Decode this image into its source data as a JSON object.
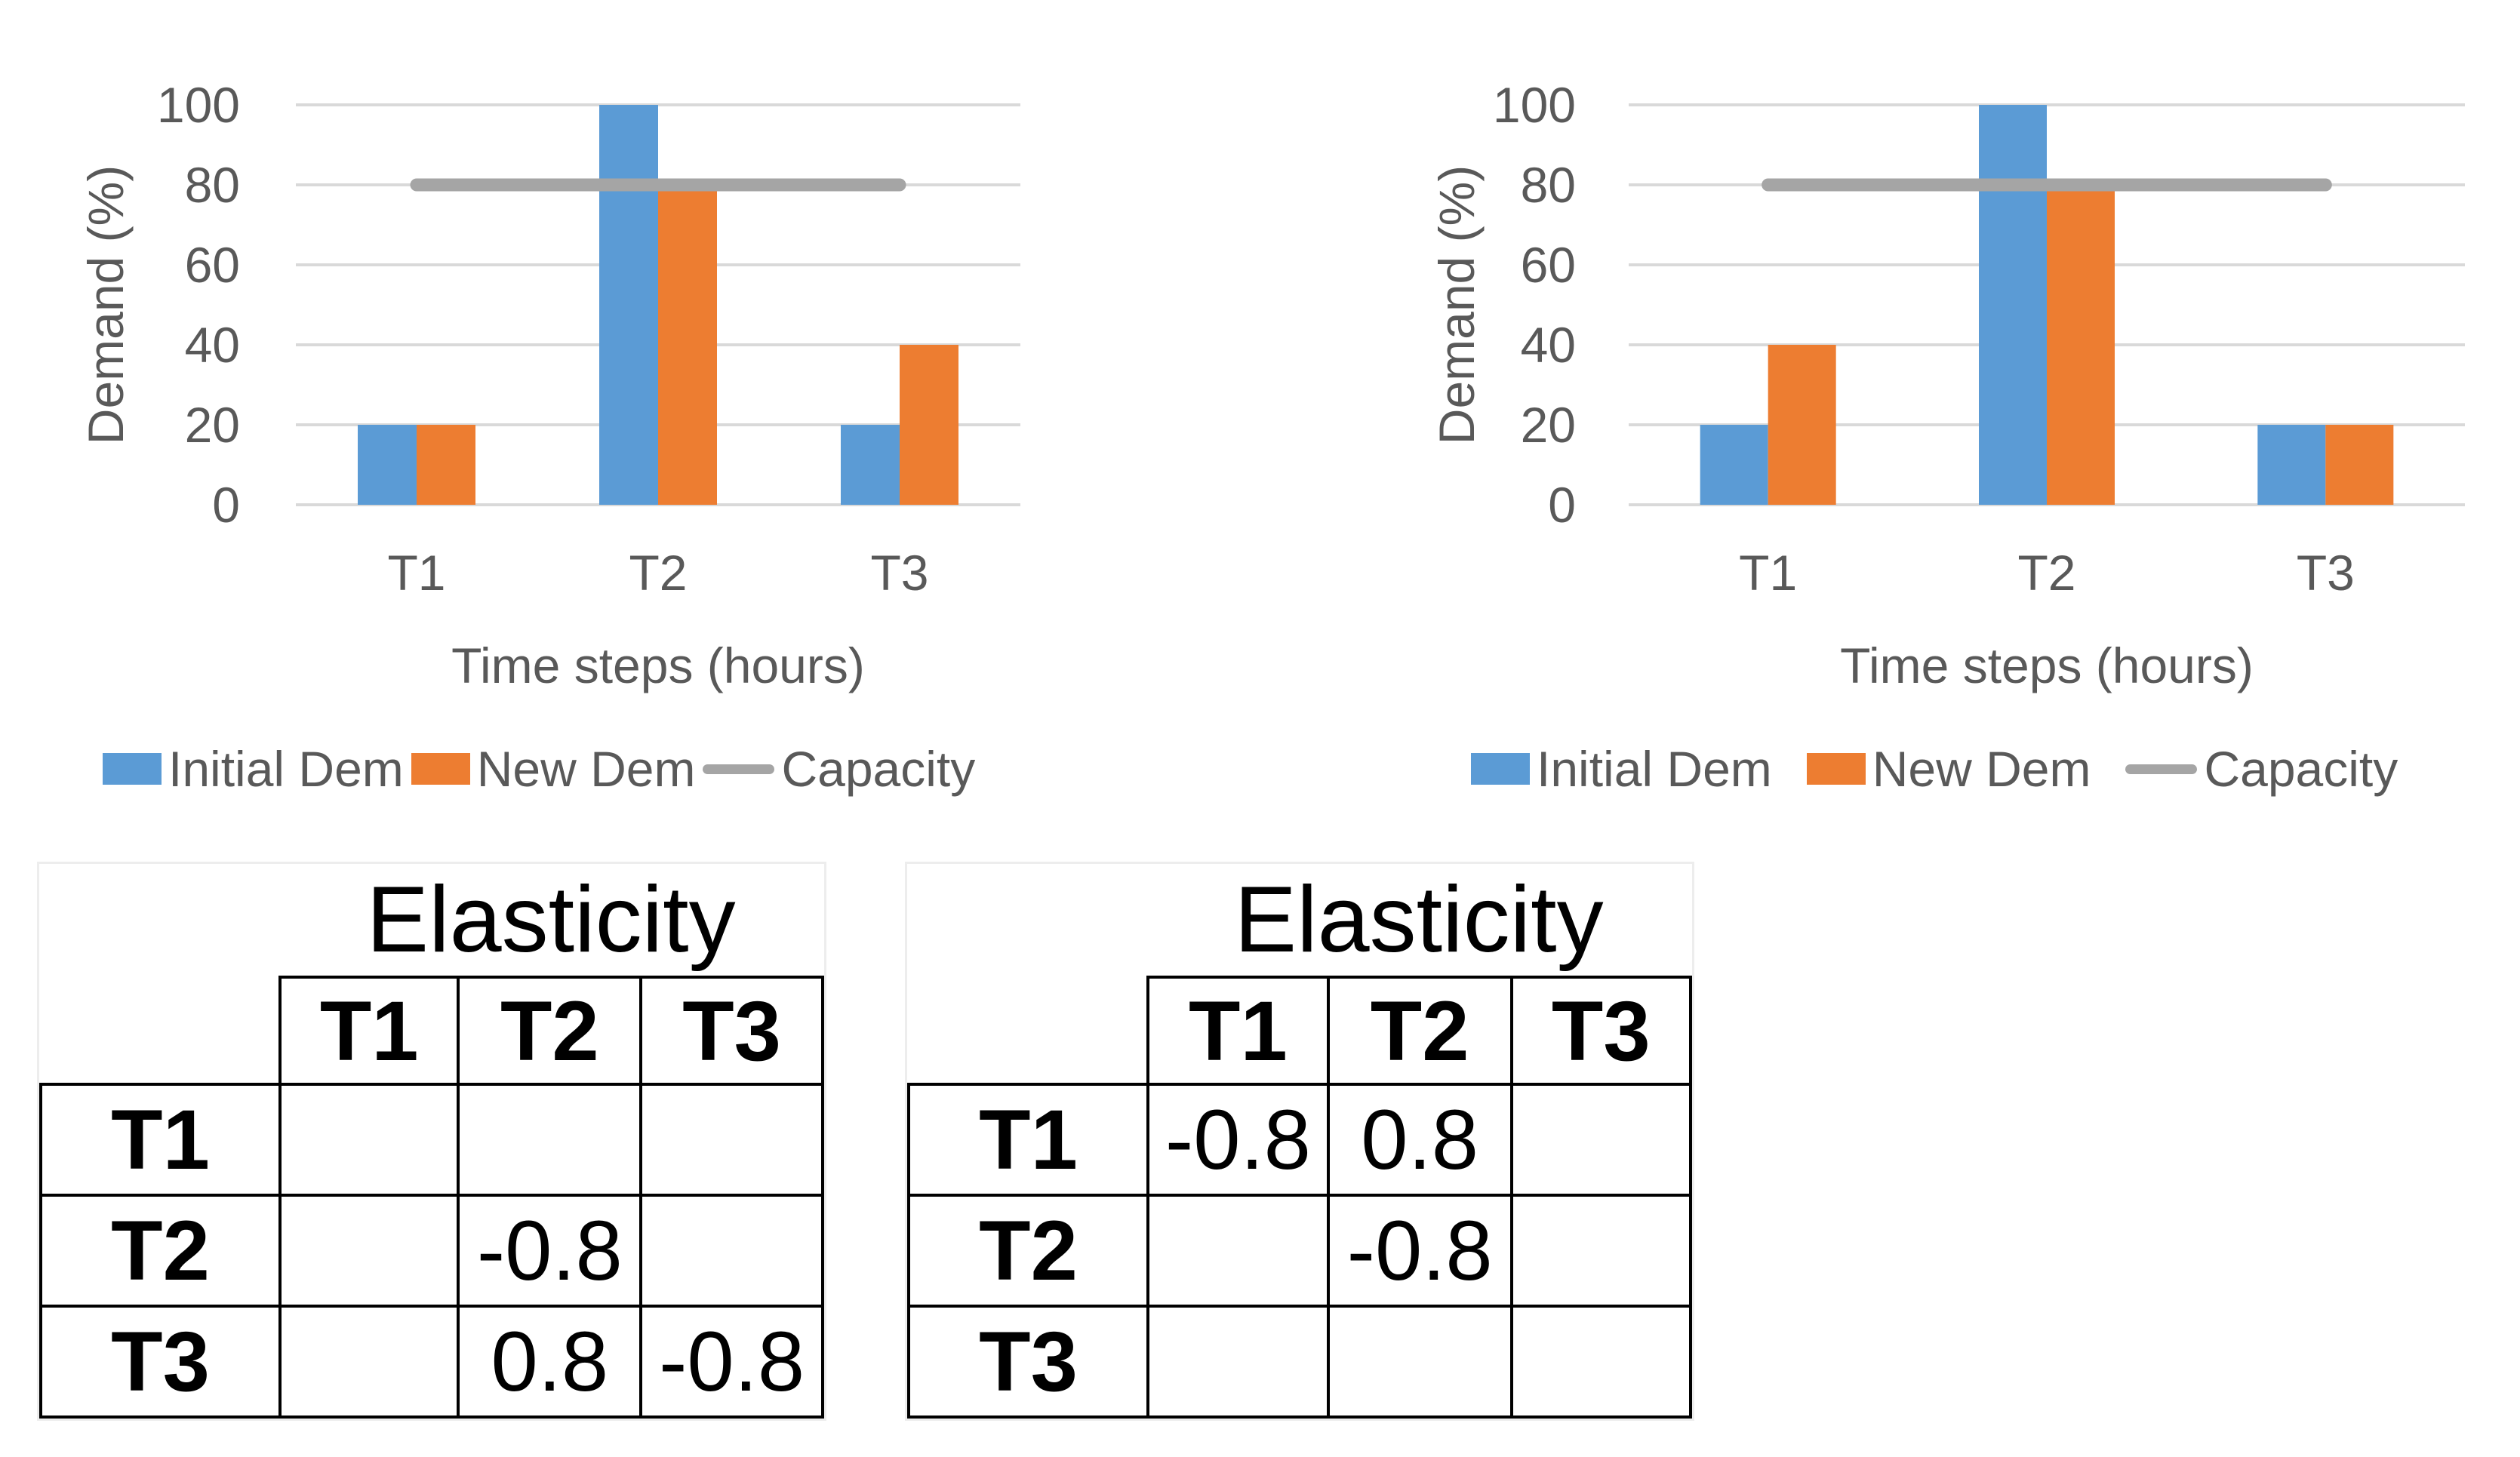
{
  "colors": {
    "initial_dem": "#5B9BD5",
    "new_dem": "#ED7D31",
    "capacity": "#A5A5A5",
    "gridline": "#D9D9D9",
    "axis_text": "#595959",
    "table_border": "#000000",
    "table_outer_border": "#EDEDED",
    "background": "#FFFFFF"
  },
  "chart_data": [
    {
      "type": "bar",
      "id": "demand-chart-left",
      "title": "",
      "xlabel": "Time steps (hours)",
      "ylabel": "Demand (%)",
      "categories": [
        "T1",
        "T2",
        "T3"
      ],
      "ylim": [
        0,
        100
      ],
      "y_ticks": [
        0,
        20,
        40,
        60,
        80,
        100
      ],
      "grid": true,
      "legend_position": "bottom",
      "series": [
        {
          "name": "Initial Dem",
          "type": "bar",
          "color": "#5B9BD5",
          "values": [
            20,
            100,
            20
          ]
        },
        {
          "name": "New Dem",
          "type": "bar",
          "color": "#ED7D31",
          "values": [
            20,
            80,
            40
          ]
        },
        {
          "name": "Capacity",
          "type": "line",
          "color": "#A5A5A5",
          "values": [
            80,
            80,
            80
          ]
        }
      ]
    },
    {
      "type": "bar",
      "id": "demand-chart-right",
      "title": "",
      "xlabel": "Time steps (hours)",
      "ylabel": "Demand (%)",
      "categories": [
        "T1",
        "T2",
        "T3"
      ],
      "ylim": [
        0,
        100
      ],
      "y_ticks": [
        0,
        20,
        40,
        60,
        80,
        100
      ],
      "grid": true,
      "legend_position": "bottom",
      "series": [
        {
          "name": "Initial Dem",
          "type": "bar",
          "color": "#5B9BD5",
          "values": [
            20,
            100,
            20
          ]
        },
        {
          "name": "New Dem",
          "type": "bar",
          "color": "#ED7D31",
          "values": [
            40,
            80,
            20
          ]
        },
        {
          "name": "Capacity",
          "type": "line",
          "color": "#A5A5A5",
          "values": [
            80,
            80,
            80
          ]
        }
      ]
    },
    {
      "type": "table",
      "id": "elasticity-table-left",
      "title": "Elasticity",
      "col_headers": [
        "T1",
        "T2",
        "T3"
      ],
      "rows": [
        {
          "header": "T1",
          "cells": [
            "",
            "",
            ""
          ]
        },
        {
          "header": "T2",
          "cells": [
            "",
            "-0.8",
            ""
          ]
        },
        {
          "header": "T3",
          "cells": [
            "",
            "0.8",
            "-0.8"
          ]
        }
      ]
    },
    {
      "type": "table",
      "id": "elasticity-table-right",
      "title": "Elasticity",
      "col_headers": [
        "T1",
        "T2",
        "T3"
      ],
      "rows": [
        {
          "header": "T1",
          "cells": [
            "-0.8",
            "0.8",
            ""
          ]
        },
        {
          "header": "T2",
          "cells": [
            "",
            "-0.8",
            ""
          ]
        },
        {
          "header": "T3",
          "cells": [
            "",
            "",
            ""
          ]
        }
      ]
    }
  ]
}
